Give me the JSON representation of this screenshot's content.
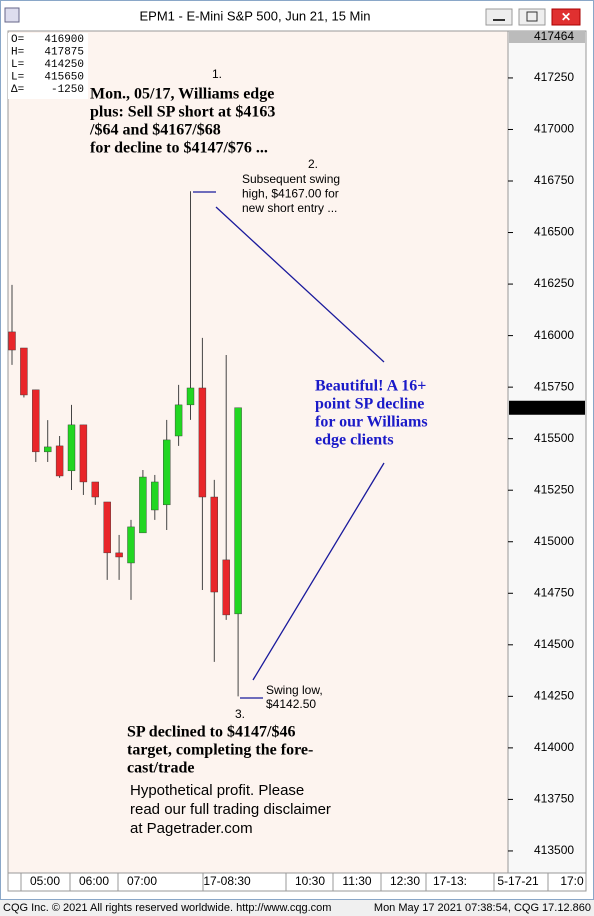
{
  "window_title": "EPM1 - E-Mini S&P 500, Jun 21, 15 Min",
  "chart_data": {
    "type": "candlestick",
    "up_color": "#22d622",
    "down_color": "#e8262a",
    "open": [
      416018,
      415940,
      415737,
      415436,
      415465,
      415344,
      415567,
      415290,
      415193,
      414946,
      414897,
      415043,
      415154,
      415179,
      415513,
      415664,
      415746,
      415217,
      414912,
      414650
    ],
    "high": [
      416246,
      415940,
      415737,
      415590,
      415513,
      415664,
      415567,
      415290,
      415193,
      415033,
      415106,
      415348,
      415324,
      415591,
      415761,
      416700,
      415989,
      415300,
      415906,
      415650
    ],
    "low": [
      415858,
      415700,
      415387,
      415387,
      415310,
      415251,
      415227,
      415179,
      414815,
      414815,
      414718,
      415043,
      415106,
      415057,
      415465,
      415591,
      414766,
      414417,
      414621,
      414250
    ],
    "close": [
      415930,
      415712,
      415436,
      415460,
      415319,
      415567,
      415290,
      415217,
      414946,
      414926,
      415072,
      415314,
      415290,
      415494,
      415664,
      415746,
      415217,
      414756,
      414645,
      415650
    ],
    "ylim": [
      413393,
      417468
    ],
    "yticks": [
      417250,
      417000,
      416750,
      416500,
      416250,
      416000,
      415750,
      415500,
      415250,
      415000,
      414750,
      414500,
      414250,
      414000,
      413750,
      413500
    ],
    "top_label": 417464,
    "last_price": 415650,
    "time_labels": [
      "05:00",
      "06:00",
      "07:00",
      "17-08:30",
      "10:30",
      "11:30",
      "12:30",
      "17-13:",
      "5-17-21",
      "17:0"
    ],
    "stats": [
      {
        "label": "O=",
        "value": 416900
      },
      {
        "label": "H=",
        "value": 417875
      },
      {
        "label": "L=",
        "value": 414250
      },
      {
        "label": "L=",
        "value": 415650
      },
      {
        "label": "Δ=",
        "value": -1250
      }
    ],
    "annotations": {
      "n1": "1.",
      "forecast": [
        "Mon., 05/17, Williams edge",
        "plus: Sell SP short at $4163",
        "/$64 and $4167/$68",
        "for decline to $4147/$76 ..."
      ],
      "n2": "2.",
      "swing_high": [
        "Subsequent swing",
        "high, $4167.00 for",
        "new short entry ..."
      ],
      "result": [
        "Beautiful! A 16+",
        "point SP decline",
        "for our Williams",
        "edge clients"
      ],
      "swing_low": [
        "Swing low,",
        "$4142.50"
      ],
      "n3": "3.",
      "target": [
        "SP declined to $4147/$46",
        "target, completing the fore-",
        "cast/trade"
      ],
      "disclaimer": [
        "Hypothetical profit. Please",
        "read our full trading disclaimer",
        "at Pagetrader.com"
      ]
    }
  },
  "footer": {
    "left": "CQG Inc. © 2021 All rights reserved worldwide. http://www.cqg.com",
    "right": "Mon May 17 2021 07:38:54, CQG 17.12.860"
  }
}
